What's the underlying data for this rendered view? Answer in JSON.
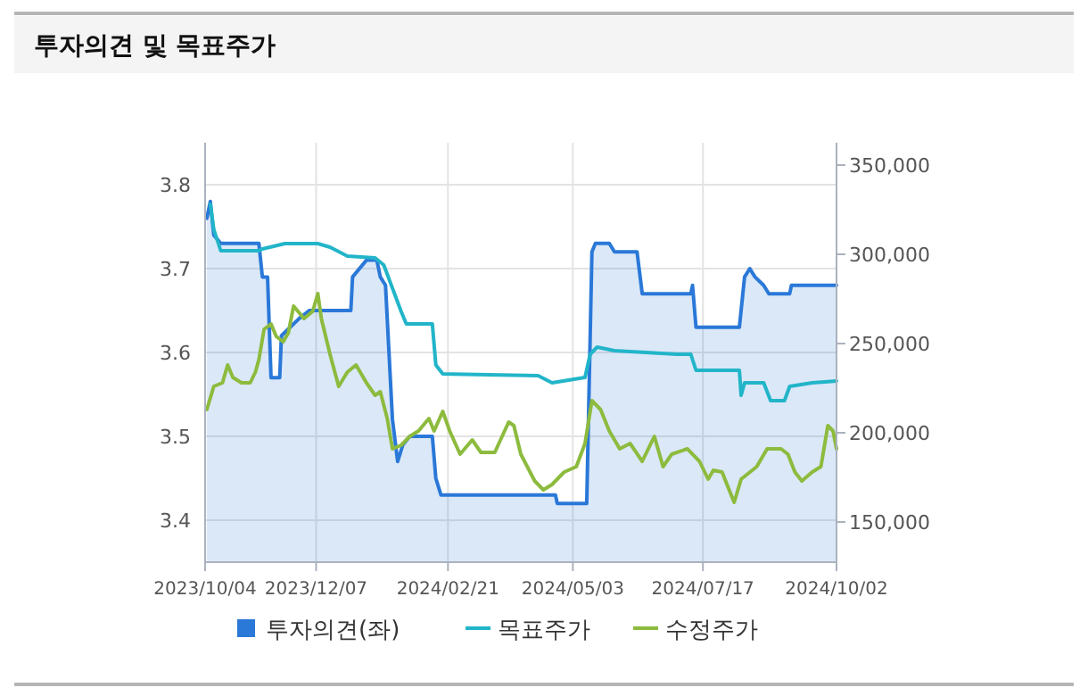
{
  "chart_data": {
    "type": "line",
    "title": "투자의견 및 목표주가",
    "xlim": [
      "2023-10-04",
      "2024-10-02"
    ],
    "xticks": [
      {
        "value": "2023-10-04",
        "label": "2023/10/04"
      },
      {
        "value": "2023-12-07",
        "label": "2023/12/07"
      },
      {
        "value": "2024-02-21",
        "label": "2024/02/21"
      },
      {
        "value": "2024-05-03",
        "label": "2024/05/03"
      },
      {
        "value": "2024-07-17",
        "label": "2024/07/17"
      },
      {
        "value": "2024-10-02",
        "label": "2024/10/02"
      }
    ],
    "ylim": [
      3.35,
      3.85
    ],
    "yticks": [
      3.4,
      3.5,
      3.6,
      3.7,
      3.8
    ],
    "y2lim": [
      127500,
      362500
    ],
    "y2ticks": [
      {
        "value": 150000,
        "label": "150,000"
      },
      {
        "value": 200000,
        "label": "200,000"
      },
      {
        "value": 250000,
        "label": "250,000"
      },
      {
        "value": 300000,
        "label": "300,000"
      },
      {
        "value": 350000,
        "label": "350,000"
      }
    ],
    "grid": true,
    "legend": "bottom",
    "series": [
      {
        "name": "투자의견(좌)",
        "type": "area",
        "color": "#2a78d8",
        "x": [
          "2023-10-05",
          "2023-10-07",
          "2023-10-09",
          "2023-10-13",
          "2023-11-04",
          "2023-11-06",
          "2023-11-09",
          "2023-11-11",
          "2023-11-16",
          "2023-11-17",
          "2023-11-22",
          "2023-11-27",
          "2023-12-03",
          "2023-12-27",
          "2023-12-28",
          "2024-01-01",
          "2024-01-05",
          "2024-01-11",
          "2024-01-13",
          "2024-01-16",
          "2024-01-20",
          "2024-01-23",
          "2024-01-26",
          "2024-01-30",
          "2024-02-12",
          "2024-02-14",
          "2024-02-17",
          "2024-04-23",
          "2024-04-24",
          "2024-05-11",
          "2024-05-14",
          "2024-05-16",
          "2024-05-24",
          "2024-05-27",
          "2024-06-09",
          "2024-06-12",
          "2024-07-10",
          "2024-07-11",
          "2024-07-13",
          "2024-08-07",
          "2024-08-10",
          "2024-08-13",
          "2024-08-16",
          "2024-08-21",
          "2024-08-24",
          "2024-09-05",
          "2024-09-06",
          "2024-10-02"
        ],
        "values": [
          3.76,
          3.78,
          3.74,
          3.73,
          3.73,
          3.69,
          3.69,
          3.57,
          3.57,
          3.62,
          3.63,
          3.64,
          3.65,
          3.65,
          3.69,
          3.7,
          3.71,
          3.71,
          3.69,
          3.68,
          3.52,
          3.47,
          3.49,
          3.5,
          3.5,
          3.45,
          3.43,
          3.43,
          3.42,
          3.42,
          3.72,
          3.73,
          3.73,
          3.72,
          3.72,
          3.67,
          3.67,
          3.68,
          3.63,
          3.63,
          3.69,
          3.7,
          3.69,
          3.68,
          3.67,
          3.67,
          3.68,
          3.68
        ]
      },
      {
        "name": "목표주가",
        "axis": "y2",
        "color": "#22b5c9",
        "x": [
          "2023-10-07",
          "2023-10-09",
          "2023-10-13",
          "2023-11-04",
          "2023-11-06",
          "2023-11-19",
          "2023-12-08",
          "2023-12-15",
          "2023-12-25",
          "2024-01-10",
          "2024-01-15",
          "2024-01-20",
          "2024-01-25",
          "2024-01-28",
          "2024-02-12",
          "2024-02-14",
          "2024-02-18",
          "2024-04-13",
          "2024-04-21",
          "2024-05-10",
          "2024-05-13",
          "2024-05-17",
          "2024-05-27",
          "2024-07-02",
          "2024-07-10",
          "2024-07-13",
          "2024-08-07",
          "2024-08-08",
          "2024-08-10",
          "2024-08-21",
          "2024-08-25",
          "2024-09-02",
          "2024-09-05",
          "2024-09-18",
          "2024-10-02"
        ],
        "values": [
          328000,
          314000,
          302000,
          302000,
          303000,
          306000,
          306000,
          304000,
          299000,
          298000,
          294000,
          281000,
          268000,
          261000,
          261000,
          238000,
          233000,
          232000,
          228000,
          231000,
          244000,
          248000,
          246000,
          244000,
          244000,
          235000,
          235000,
          221000,
          228000,
          228000,
          218000,
          218000,
          226000,
          228000,
          229000
        ]
      },
      {
        "name": "수정주가",
        "axis": "y2",
        "color": "#8dbb3e",
        "x": [
          "2023-10-05",
          "2023-10-09",
          "2023-10-14",
          "2023-10-17",
          "2023-10-20",
          "2023-10-25",
          "2023-10-30",
          "2023-11-02",
          "2023-11-04",
          "2023-11-07",
          "2023-11-11",
          "2023-11-14",
          "2023-11-18",
          "2023-11-21",
          "2023-11-24",
          "2023-11-30",
          "2023-12-05",
          "2023-12-08",
          "2023-12-10",
          "2023-12-15",
          "2023-12-20",
          "2023-12-25",
          "2023-12-30",
          "2024-01-05",
          "2024-01-10",
          "2024-01-13",
          "2024-01-17",
          "2024-01-20",
          "2024-01-25",
          "2024-01-30",
          "2024-02-04",
          "2024-02-10",
          "2024-02-13",
          "2024-02-18",
          "2024-02-22",
          "2024-02-28",
          "2024-03-06",
          "2024-03-11",
          "2024-03-19",
          "2024-03-27",
          "2024-03-30",
          "2024-04-03",
          "2024-04-11",
          "2024-04-16",
          "2024-04-21",
          "2024-04-28",
          "2024-05-05",
          "2024-05-10",
          "2024-05-14",
          "2024-05-19",
          "2024-05-24",
          "2024-05-30",
          "2024-06-05",
          "2024-06-12",
          "2024-06-19",
          "2024-06-24",
          "2024-06-29",
          "2024-07-08",
          "2024-07-15",
          "2024-07-20",
          "2024-07-23",
          "2024-07-28",
          "2024-08-04",
          "2024-08-08",
          "2024-08-17",
          "2024-08-23",
          "2024-08-31",
          "2024-09-04",
          "2024-09-08",
          "2024-09-12",
          "2024-09-18",
          "2024-09-23",
          "2024-09-27",
          "2024-09-30",
          "2024-10-02"
        ],
        "values": [
          213000,
          226000,
          228000,
          238000,
          231000,
          228000,
          228000,
          234000,
          241000,
          258000,
          261000,
          254000,
          251000,
          256000,
          271000,
          264000,
          268000,
          278000,
          264000,
          244000,
          226000,
          234000,
          238000,
          228000,
          221000,
          223000,
          208000,
          191000,
          193000,
          198000,
          201000,
          208000,
          201000,
          212000,
          201000,
          188000,
          196000,
          189000,
          189000,
          206000,
          204000,
          188000,
          173000,
          168000,
          171000,
          178000,
          181000,
          194000,
          218000,
          213000,
          201000,
          191000,
          194000,
          184000,
          198000,
          181000,
          188000,
          191000,
          184000,
          174000,
          179000,
          178000,
          161000,
          174000,
          181000,
          191000,
          191000,
          188000,
          178000,
          173000,
          178000,
          181000,
          204000,
          201000,
          191000
        ]
      }
    ]
  }
}
